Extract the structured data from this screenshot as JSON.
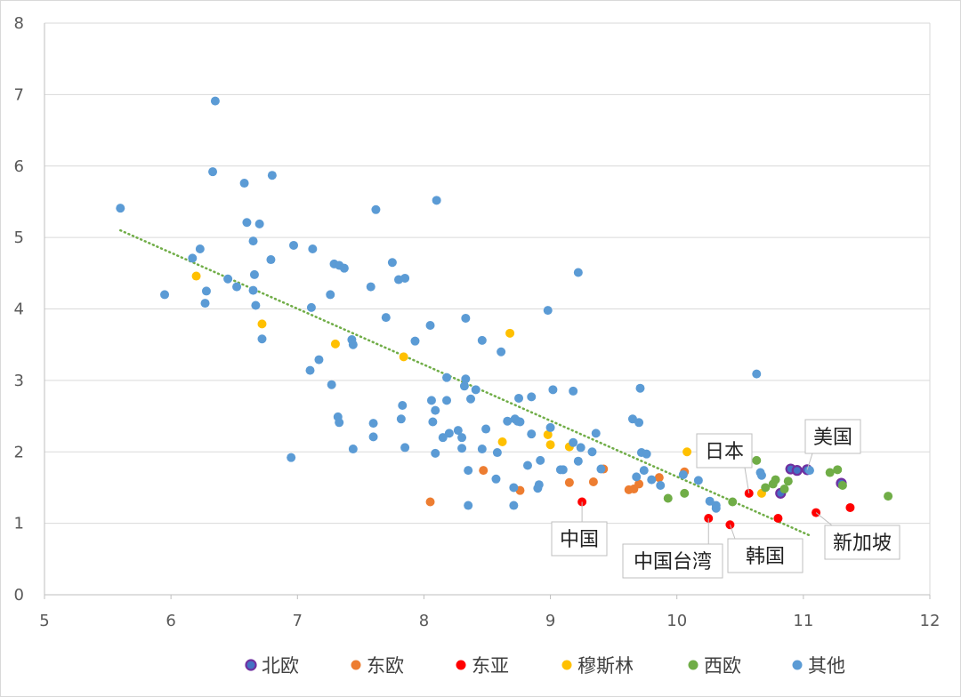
{
  "chart_data": {
    "type": "scatter",
    "title": "",
    "xlabel": "",
    "ylabel": "",
    "xlim": [
      5,
      12
    ],
    "ylim": [
      0,
      8
    ],
    "xticks": [
      "5",
      "6",
      "7",
      "8",
      "9",
      "10",
      "11",
      "12"
    ],
    "yticks": [
      "0",
      "1",
      "2",
      "3",
      "4",
      "5",
      "6",
      "7",
      "8"
    ],
    "grid": "horizontal",
    "legend_position": "bottom",
    "trendline": {
      "type": "linear",
      "color": "#70ad47",
      "style": "dotted",
      "x_start": 5.6,
      "y_start": 5.1,
      "x_end": 11.05,
      "y_end": 0.83
    },
    "series": [
      {
        "name": "北欧",
        "color": "#4472c4",
        "edge": "#7030a0",
        "points": [
          [
            10.9,
            1.76
          ],
          [
            10.95,
            1.74
          ],
          [
            10.82,
            1.42
          ],
          [
            11.03,
            1.75
          ],
          [
            11.3,
            1.56
          ]
        ]
      },
      {
        "name": "东欧",
        "color": "#ed7d31",
        "points": [
          [
            8.05,
            1.3
          ],
          [
            8.47,
            1.74
          ],
          [
            8.76,
            1.46
          ],
          [
            9.15,
            1.57
          ],
          [
            9.34,
            1.58
          ],
          [
            9.42,
            1.76
          ],
          [
            9.62,
            1.47
          ],
          [
            9.66,
            1.48
          ],
          [
            9.7,
            1.55
          ],
          [
            9.86,
            1.64
          ],
          [
            10.06,
            1.72
          ]
        ]
      },
      {
        "name": "东亚",
        "color": "#ff0000",
        "points": [
          [
            9.25,
            1.3
          ],
          [
            10.25,
            1.07
          ],
          [
            10.42,
            0.98
          ],
          [
            10.57,
            1.42
          ],
          [
            10.8,
            1.07
          ],
          [
            11.1,
            1.15
          ],
          [
            11.37,
            1.22
          ]
        ]
      },
      {
        "name": "穆斯林",
        "color": "#ffc000",
        "points": [
          [
            6.2,
            4.46
          ],
          [
            6.72,
            3.79
          ],
          [
            7.3,
            3.51
          ],
          [
            7.84,
            3.33
          ],
          [
            8.68,
            3.66
          ],
          [
            8.62,
            2.14
          ],
          [
            8.98,
            2.24
          ],
          [
            9.0,
            2.1
          ],
          [
            9.15,
            2.07
          ],
          [
            10.08,
            2.0
          ],
          [
            10.67,
            1.42
          ]
        ]
      },
      {
        "name": "西欧",
        "color": "#70ad47",
        "points": [
          [
            9.93,
            1.35
          ],
          [
            10.06,
            1.42
          ],
          [
            10.44,
            1.3
          ],
          [
            10.63,
            1.88
          ],
          [
            10.7,
            1.5
          ],
          [
            10.76,
            1.55
          ],
          [
            10.78,
            1.61
          ],
          [
            10.85,
            1.48
          ],
          [
            10.88,
            1.59
          ],
          [
            11.21,
            1.71
          ],
          [
            11.27,
            1.75
          ],
          [
            11.31,
            1.53
          ],
          [
            11.67,
            1.38
          ]
        ]
      },
      {
        "name": "其他",
        "color": "#5b9bd5",
        "points": [
          [
            5.6,
            5.41
          ],
          [
            5.95,
            4.2
          ],
          [
            6.17,
            4.71
          ],
          [
            6.23,
            4.84
          ],
          [
            6.27,
            4.08
          ],
          [
            6.28,
            4.25
          ],
          [
            6.33,
            5.92
          ],
          [
            6.35,
            6.91
          ],
          [
            6.45,
            4.42
          ],
          [
            6.52,
            4.31
          ],
          [
            6.58,
            5.76
          ],
          [
            6.6,
            5.21
          ],
          [
            6.65,
            4.95
          ],
          [
            6.66,
            4.48
          ],
          [
            6.65,
            4.26
          ],
          [
            6.67,
            4.05
          ],
          [
            6.7,
            5.19
          ],
          [
            6.72,
            3.58
          ],
          [
            6.79,
            4.69
          ],
          [
            6.8,
            5.87
          ],
          [
            6.95,
            1.92
          ],
          [
            6.97,
            4.89
          ],
          [
            7.1,
            3.14
          ],
          [
            7.11,
            4.02
          ],
          [
            7.12,
            4.84
          ],
          [
            7.17,
            3.29
          ],
          [
            7.26,
            4.2
          ],
          [
            7.27,
            2.94
          ],
          [
            7.29,
            4.63
          ],
          [
            7.33,
            4.61
          ],
          [
            7.37,
            4.57
          ],
          [
            7.32,
            2.49
          ],
          [
            7.33,
            2.41
          ],
          [
            7.43,
            3.57
          ],
          [
            7.44,
            3.5
          ],
          [
            7.44,
            2.04
          ],
          [
            7.58,
            4.31
          ],
          [
            7.6,
            2.4
          ],
          [
            7.6,
            2.21
          ],
          [
            7.62,
            5.39
          ],
          [
            7.7,
            3.88
          ],
          [
            7.75,
            4.65
          ],
          [
            7.8,
            4.41
          ],
          [
            7.82,
            2.46
          ],
          [
            7.83,
            2.65
          ],
          [
            7.85,
            2.06
          ],
          [
            7.85,
            4.43
          ],
          [
            7.93,
            3.55
          ],
          [
            8.05,
            3.77
          ],
          [
            8.06,
            2.72
          ],
          [
            8.07,
            2.42
          ],
          [
            8.09,
            1.98
          ],
          [
            8.09,
            2.58
          ],
          [
            8.1,
            5.52
          ],
          [
            8.15,
            2.2
          ],
          [
            8.18,
            2.72
          ],
          [
            8.18,
            3.04
          ],
          [
            8.2,
            2.26
          ],
          [
            8.27,
            2.3
          ],
          [
            8.3,
            2.2
          ],
          [
            8.3,
            2.05
          ],
          [
            8.32,
            2.92
          ],
          [
            8.33,
            3.02
          ],
          [
            8.33,
            3.87
          ],
          [
            8.35,
            1.25
          ],
          [
            8.35,
            1.74
          ],
          [
            8.37,
            2.74
          ],
          [
            8.41,
            2.87
          ],
          [
            8.46,
            3.56
          ],
          [
            8.46,
            2.04
          ],
          [
            8.49,
            2.32
          ],
          [
            8.57,
            1.62
          ],
          [
            8.58,
            1.99
          ],
          [
            8.61,
            3.4
          ],
          [
            8.66,
            2.43
          ],
          [
            8.71,
            1.25
          ],
          [
            8.71,
            1.5
          ],
          [
            8.72,
            2.46
          ],
          [
            8.74,
            2.43
          ],
          [
            8.76,
            2.42
          ],
          [
            8.75,
            2.75
          ],
          [
            8.82,
            1.81
          ],
          [
            8.85,
            2.77
          ],
          [
            8.85,
            2.25
          ],
          [
            8.9,
            1.49
          ],
          [
            8.91,
            1.54
          ],
          [
            8.92,
            1.88
          ],
          [
            8.98,
            3.98
          ],
          [
            9.0,
            2.34
          ],
          [
            9.02,
            2.87
          ],
          [
            9.08,
            1.75
          ],
          [
            9.1,
            1.75
          ],
          [
            9.18,
            2.13
          ],
          [
            9.18,
            2.85
          ],
          [
            9.22,
            4.51
          ],
          [
            9.22,
            1.87
          ],
          [
            9.24,
            2.06
          ],
          [
            9.33,
            2.0
          ],
          [
            9.36,
            2.26
          ],
          [
            9.4,
            1.76
          ],
          [
            9.65,
            2.46
          ],
          [
            9.68,
            1.65
          ],
          [
            9.7,
            2.41
          ],
          [
            9.71,
            2.89
          ],
          [
            9.72,
            1.99
          ],
          [
            9.74,
            1.74
          ],
          [
            9.76,
            1.97
          ],
          [
            9.8,
            1.61
          ],
          [
            9.87,
            1.53
          ],
          [
            10.05,
            1.68
          ],
          [
            10.17,
            1.6
          ],
          [
            10.26,
            1.31
          ],
          [
            10.31,
            1.25
          ],
          [
            10.31,
            1.21
          ],
          [
            10.63,
            3.09
          ],
          [
            10.66,
            1.71
          ],
          [
            10.67,
            1.67
          ],
          [
            11.05,
            1.74
          ]
        ]
      }
    ],
    "annotations": [
      {
        "text": "日本",
        "x": 10.57,
        "y": 1.42
      },
      {
        "text": "美国",
        "x": 11.03,
        "y": 1.75
      },
      {
        "text": "中国",
        "x": 9.25,
        "y": 1.3
      },
      {
        "text": "中国台湾",
        "x": 10.25,
        "y": 1.07
      },
      {
        "text": "韩国",
        "x": 10.42,
        "y": 0.98
      },
      {
        "text": "新加坡",
        "x": 11.1,
        "y": 1.15
      }
    ]
  }
}
